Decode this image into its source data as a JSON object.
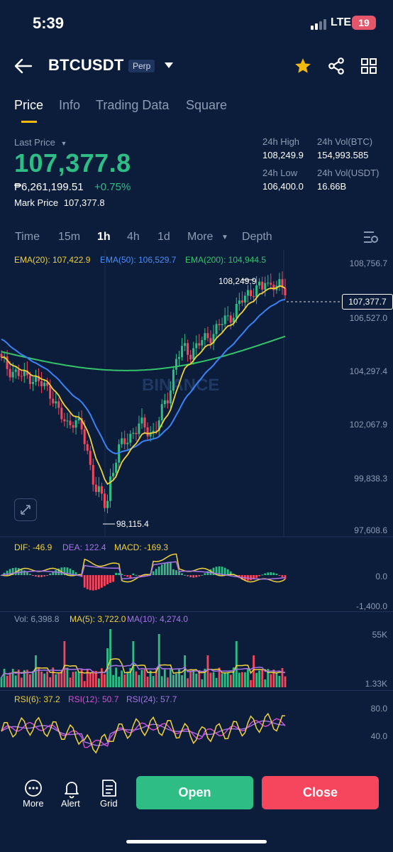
{
  "status": {
    "time": "5:39",
    "network": "LTE",
    "battery": "19"
  },
  "header": {
    "symbol": "BTCUSDT",
    "badge": "Perp"
  },
  "tabs": [
    "Price",
    "Info",
    "Trading Data",
    "Square"
  ],
  "price": {
    "last_label": "Last Price",
    "last": "107,377.8",
    "local": "₱6,261,199.51",
    "change": "+0.75%",
    "mark_label": "Mark Price",
    "mark": "107,377.8"
  },
  "stats": {
    "high_label": "24h High",
    "high": "108,249.9",
    "low_label": "24h Low",
    "low": "106,400.0",
    "vol_btc_label": "24h Vol(BTC)",
    "vol_btc": "154,993.585",
    "vol_usdt_label": "24h Vol(USDT)",
    "vol_usdt": "16.66B"
  },
  "intervals": [
    "Time",
    "15m",
    "1h",
    "4h",
    "1d",
    "More",
    "Depth"
  ],
  "indicators": {
    "ema20": "EMA(20): 107,422.9",
    "ema50": "EMA(50): 106,529.7",
    "ema200": "EMA(200): 104,944.5",
    "dif": "DIF: -46.9",
    "dea": "DEA: 122.4",
    "macd": "MACD: -169.3",
    "vol": "Vol: 6,398.8",
    "ma5": "MA(5): 3,722.0",
    "ma10": "MA(10): 4,274.0",
    "rsi6": "RSI(6): 37.2",
    "rsi12": "RSI(12): 50.7",
    "rsi24": "RSI(24): 57.7"
  },
  "axes": {
    "price": [
      "108,756.7",
      "106,527.0",
      "104,297.4",
      "102,067.9",
      "99,838.3",
      "97,608.6"
    ],
    "macd": [
      "0.0",
      "-1,400.0"
    ],
    "vol": [
      "55K",
      "1.33K"
    ],
    "rsi": [
      "80.0",
      "40.0"
    ]
  },
  "chart_labels": {
    "high": "108,249.9",
    "low": "98,115.4",
    "current": "107,377.7",
    "watermark": "BINANCE"
  },
  "colors": {
    "up": "#2ebd85",
    "down": "#f6465d",
    "ema20": "#f0d23c",
    "ema50": "#3b82f6",
    "ema200": "#35c36b",
    "accent": "#f0b90b"
  },
  "bottom": {
    "more": "More",
    "alert": "Alert",
    "grid": "Grid",
    "open": "Open",
    "close": "Close"
  },
  "chart_data": {
    "type": "candlestick",
    "candles_close_approx": [
      104600,
      104300,
      104100,
      103900,
      104000,
      103700,
      103500,
      103200,
      102300,
      101900,
      102200,
      101700,
      100500,
      99200,
      98700,
      99700,
      100800,
      101200,
      101600,
      101900,
      101700,
      101600,
      102400,
      103200,
      104700,
      105100,
      105000,
      105300,
      105500,
      105800,
      106100,
      106400,
      106700,
      107100,
      107500,
      107700,
      107600,
      107900,
      107800,
      107400
    ]
  }
}
